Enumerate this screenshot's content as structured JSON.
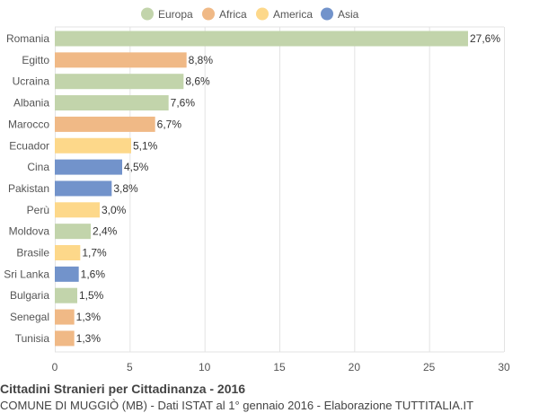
{
  "chart_data": {
    "type": "bar",
    "orientation": "horizontal",
    "legend": {
      "placement": "top",
      "items": [
        {
          "name": "Europa",
          "color": "#c2d4ab"
        },
        {
          "name": "Africa",
          "color": "#f0b986"
        },
        {
          "name": "America",
          "color": "#fdd88a"
        },
        {
          "name": "Asia",
          "color": "#7293cb"
        }
      ]
    },
    "categories": [
      "Romania",
      "Egitto",
      "Ucraina",
      "Albania",
      "Marocco",
      "Ecuador",
      "Cina",
      "Pakistan",
      "Perù",
      "Moldova",
      "Brasile",
      "Sri Lanka",
      "Bulgaria",
      "Senegal",
      "Tunisia"
    ],
    "values": [
      27.6,
      8.8,
      8.6,
      7.6,
      6.7,
      5.1,
      4.5,
      3.8,
      3.0,
      2.4,
      1.7,
      1.6,
      1.5,
      1.3,
      1.3
    ],
    "value_labels": [
      "27,6%",
      "8,8%",
      "8,6%",
      "7,6%",
      "6,7%",
      "5,1%",
      "4,5%",
      "3,8%",
      "3,0%",
      "2,4%",
      "1,7%",
      "1,6%",
      "1,5%",
      "1,3%",
      "1,3%"
    ],
    "groups": [
      "Europa",
      "Africa",
      "Europa",
      "Europa",
      "Africa",
      "America",
      "Asia",
      "Asia",
      "America",
      "Europa",
      "America",
      "Asia",
      "Europa",
      "Africa",
      "Africa"
    ],
    "xlim": [
      0,
      30
    ],
    "xticks": [
      0,
      5,
      10,
      15,
      20,
      25,
      30
    ],
    "grid": true
  },
  "footer": {
    "title": "Cittadini Stranieri per Cittadinanza - 2016",
    "subtitle": "COMUNE DI MUGGIÒ (MB) - Dati ISTAT al 1° gennaio 2016 - Elaborazione TUTTITALIA.IT"
  }
}
